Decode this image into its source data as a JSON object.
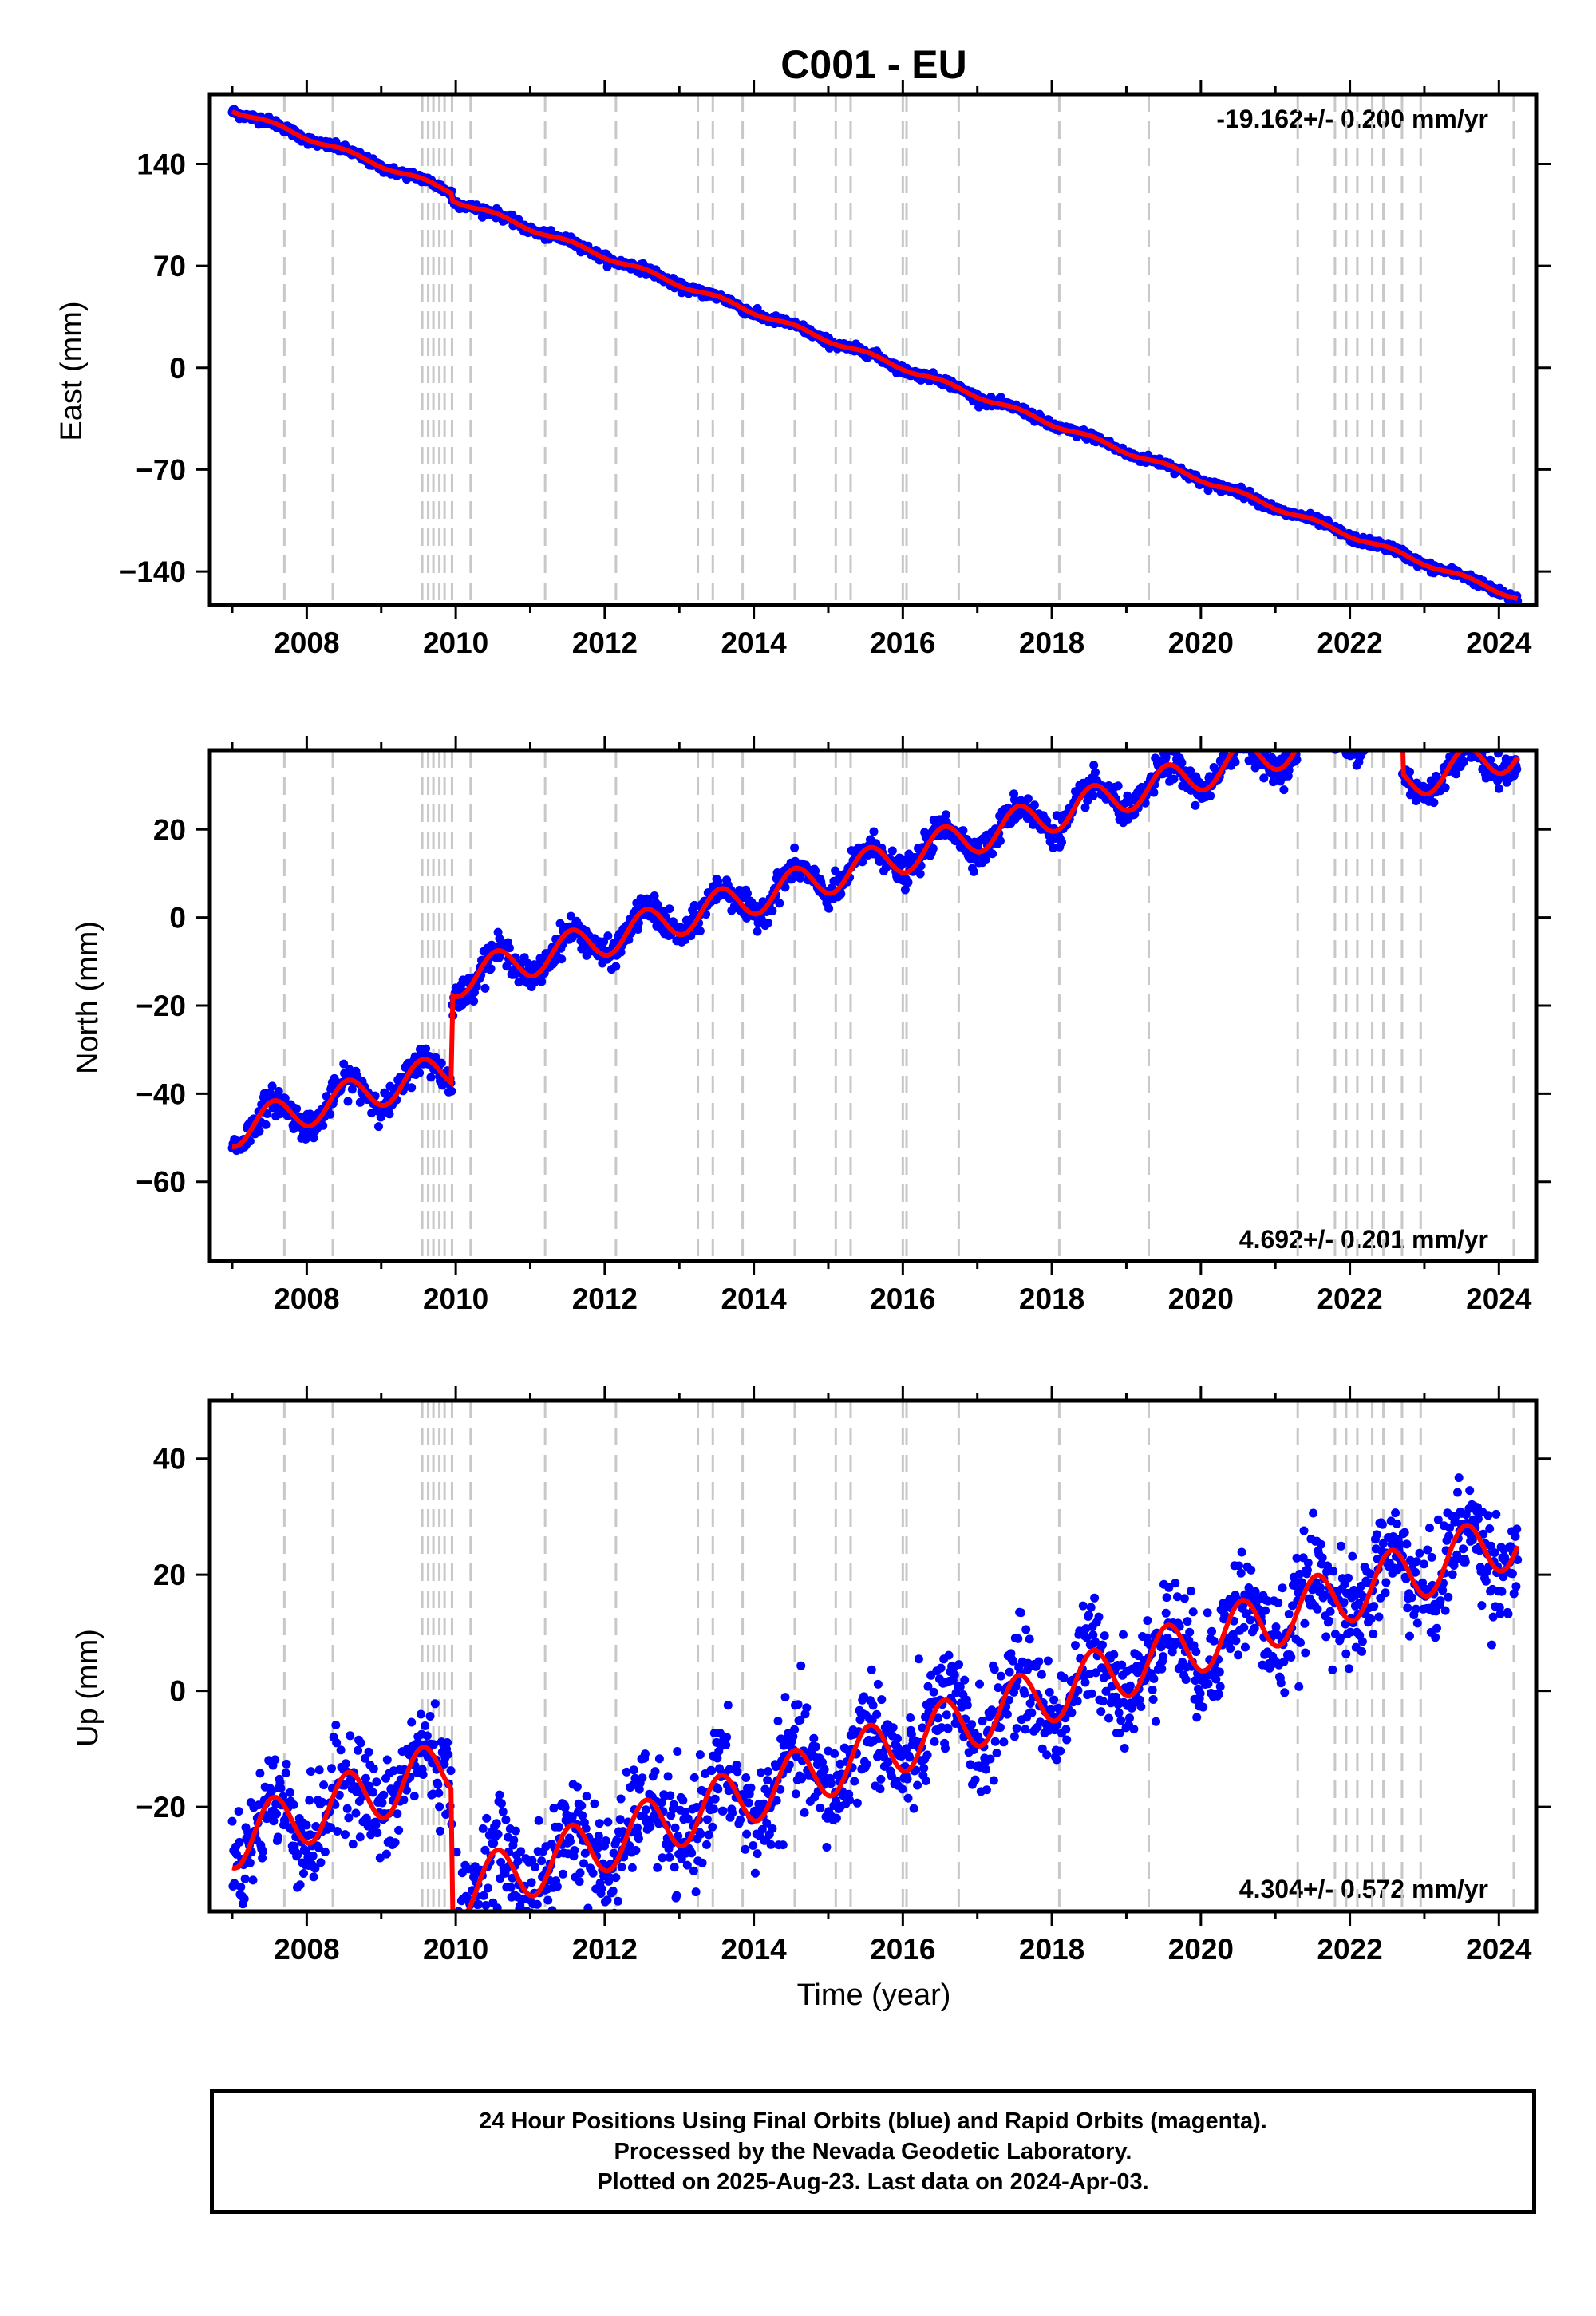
{
  "title": "C001 - EU",
  "footer": {
    "line1": "24 Hour Positions Using Final Orbits (blue) and Rapid Orbits (magenta).",
    "line2": "Processed by the Nevada Geodetic Laboratory.",
    "line3": "Plotted on 2025-Aug-23. Last data on 2024-Apr-03."
  },
  "colors": {
    "data": "#0000ff",
    "model": "#ff0000",
    "steps": "#c8c8c8",
    "frame": "#000000"
  },
  "chart_data": [
    {
      "type": "scatter",
      "component": "east",
      "title": "C001 - EU",
      "ylabel": "East (mm)",
      "xlabel": "",
      "xlim": [
        2006.7,
        2024.5
      ],
      "ylim": [
        -163,
        188
      ],
      "xticks": [
        2008,
        2010,
        2012,
        2014,
        2016,
        2018,
        2020,
        2022,
        2024
      ],
      "yticks": [
        -140,
        -70,
        0,
        70,
        140
      ],
      "rate_label": "-19.162+/- 0.200 mm/yr",
      "rate_position": "top-right",
      "velocity_mm_per_yr": -19.162,
      "velocity_sigma": 0.2,
      "offset_steps": [
        {
          "x": 2009.95,
          "y": -5
        }
      ],
      "seasonal_amplitude": 1.5,
      "scatter": 1.5,
      "anchor": {
        "x": 2016.0,
        "y": 0
      }
    },
    {
      "type": "scatter",
      "component": "north",
      "ylabel": "North (mm)",
      "xlabel": "",
      "xlim": [
        2006.7,
        2024.5
      ],
      "ylim": [
        -78,
        38
      ],
      "xticks": [
        2008,
        2010,
        2012,
        2014,
        2016,
        2018,
        2020,
        2022,
        2024
      ],
      "yticks": [
        -60,
        -40,
        -20,
        0,
        20
      ],
      "rate_label": "4.692+/- 0.201 mm/yr",
      "rate_position": "bottom-right",
      "velocity_mm_per_yr": 4.692,
      "velocity_sigma": 0.201,
      "offset_steps": [
        {
          "x": 2009.95,
          "y": 20
        },
        {
          "x": 2022.7,
          "y": -15
        }
      ],
      "seasonal_amplitude": 4,
      "scatter": 1.6,
      "anchor": {
        "x": 2016.0,
        "y": -1
      }
    },
    {
      "type": "scatter",
      "component": "up",
      "ylabel": "Up (mm)",
      "xlabel": "Time (year)",
      "xlim": [
        2006.7,
        2024.5
      ],
      "ylim": [
        -38,
        50
      ],
      "xticks": [
        2008,
        2010,
        2012,
        2014,
        2016,
        2018,
        2020,
        2022,
        2024
      ],
      "yticks": [
        -20,
        0,
        20,
        40
      ],
      "rate_label": "4.304+/- 0.572 mm/yr",
      "rate_position": "bottom-right",
      "velocity_mm_per_yr": 4.304,
      "velocity_sigma": 0.572,
      "offset_steps": [
        {
          "x": 2009.95,
          "y": -22
        }
      ],
      "seasonal_amplitude": 5,
      "scatter": 4.5,
      "anchor": {
        "x": 2016.0,
        "y": -9
      }
    }
  ],
  "equipment_change_epochs": [
    2007.7,
    2008.35,
    2009.55,
    2009.63,
    2009.7,
    2009.78,
    2009.85,
    2009.95,
    2010.2,
    2011.2,
    2012.15,
    2013.25,
    2013.45,
    2013.85,
    2014.55,
    2015.1,
    2015.3,
    2016.0,
    2016.05,
    2016.75,
    2018.1,
    2019.3,
    2021.3,
    2021.8,
    2021.95,
    2022.1,
    2022.3,
    2022.45,
    2022.7,
    2022.95,
    2024.2
  ],
  "data_span": [
    2007.0,
    2024.25
  ]
}
